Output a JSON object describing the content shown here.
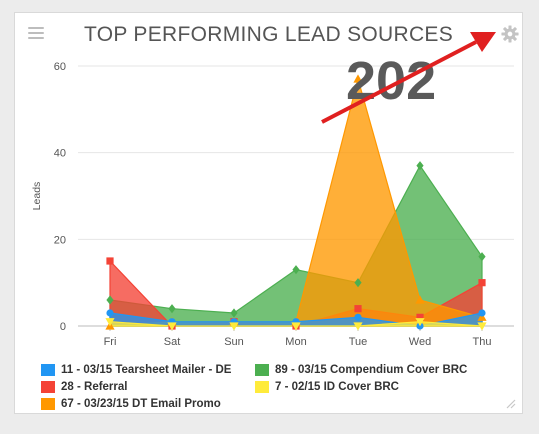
{
  "widget": {
    "title": "TOP PERFORMING LEAD SOURCES",
    "menu_icon": "hamburger-menu-icon",
    "settings_icon": "gear-icon",
    "resize_icon": "resize-handle-icon"
  },
  "annotation": {
    "value": "202",
    "arrow_color": "#e02020"
  },
  "chart_data": {
    "type": "area",
    "title": "TOP PERFORMING LEAD SOURCES",
    "ylabel": "Leads",
    "xlabel": "",
    "categories": [
      "Fri",
      "Sat",
      "Sun",
      "Mon",
      "Tue",
      "Wed",
      "Thu"
    ],
    "ylim": [
      0,
      60
    ],
    "yticks": [
      0,
      20,
      40,
      60
    ],
    "grid": true,
    "legend_position": "bottom",
    "series": [
      {
        "name": "11 - 03/15 Tearsheet Mailer - DE",
        "color": "#2196f3",
        "marker": "circle",
        "values": [
          3,
          1,
          1,
          1,
          2,
          0,
          3
        ]
      },
      {
        "name": "89 - 03/15 Compendium Cover BRC",
        "color": "#4caf50",
        "marker": "diamond",
        "values": [
          6,
          4,
          3,
          13,
          10,
          37,
          16
        ]
      },
      {
        "name": "28 - Referral",
        "color": "#f44336",
        "marker": "square",
        "values": [
          15,
          0,
          1,
          0,
          4,
          2,
          10
        ]
      },
      {
        "name": "7 - 02/15 ID Cover BRC",
        "color": "#ffeb3b",
        "marker": "triangle-down",
        "values": [
          1,
          0,
          0,
          0,
          0,
          1,
          0
        ]
      },
      {
        "name": "67 - 03/23/15 DT Email Promo",
        "color": "#ff9800",
        "marker": "triangle",
        "values": [
          0,
          1,
          1,
          1,
          57,
          6,
          2
        ]
      }
    ]
  }
}
